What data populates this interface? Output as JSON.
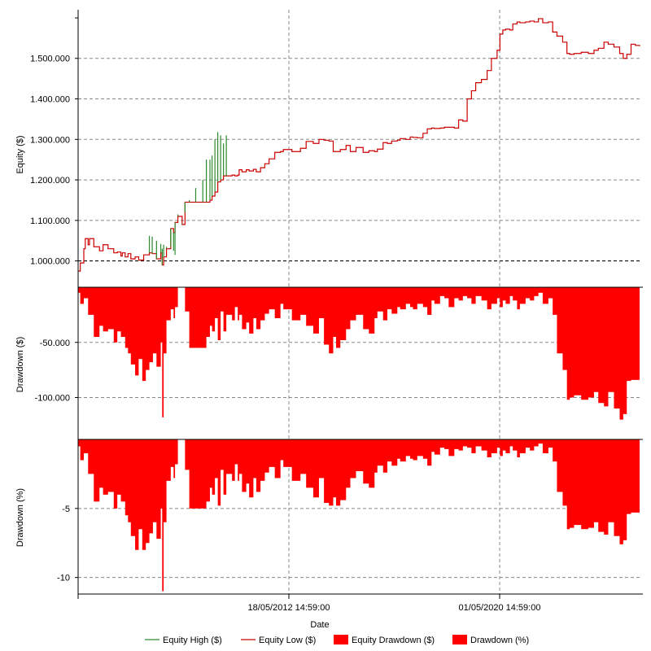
{
  "chart_data": {
    "type": "line",
    "x_axis": {
      "label": "Date",
      "tick_labels": [
        "18/05/2012 14:59:00",
        "01/05/2020 14:59:00"
      ]
    },
    "panels": [
      {
        "id": "equity",
        "ylabel": "Equity ($)",
        "ylim": [
          935000,
          1620000
        ],
        "yticks": [
          1000000,
          1100000,
          1200000,
          1300000,
          1400000,
          1500000
        ],
        "ytick_labels": [
          "1.000.000",
          "1.100.000",
          "1.200.000",
          "1.300.000",
          "1.400.000",
          "1.500.000"
        ],
        "reference_line": 1000000,
        "series": [
          {
            "name": "Equity Low ($)",
            "type": "line",
            "color": "#cc0000",
            "x": [
              0,
              3,
              8,
              10,
              14,
              16,
              22,
              30,
              35,
              42,
              50,
              55,
              60,
              62,
              66,
              70,
              74,
              80,
              85,
              92,
              100,
              104,
              110,
              116,
              118,
              120,
              124,
              130,
              134,
              136,
              140,
              146,
              150,
              156,
              165,
              175,
              180,
              185,
              188,
              192,
              196,
              200,
              204,
              208,
              216,
              220,
              224,
              226,
              230,
              236,
              240,
              246,
              250,
              256,
              262,
              268,
              276,
              284,
              288,
              300,
              312,
              320,
              330,
              338,
              345,
              352,
              358,
              362,
              368,
              376,
              382,
              390,
              400,
              408,
              416,
              420,
              428,
              434,
              440,
              448,
              452,
              460,
              466,
              470,
              476,
              484,
              490,
              496,
              500,
              508,
              514,
              520,
              528,
              534,
              540,
              546,
              552,
              558,
              566,
              574,
              580,
              588,
              592,
              596,
              600,
              606,
              610,
              616,
              620,
              628,
              634,
              640,
              646,
              652,
              660,
              666,
              672,
              680,
              686,
              690,
              696,
              706,
              716,
              724,
              730,
              738,
              744,
              752,
              760,
              765,
              770,
              776,
              782,
              788
            ],
            "y": [
              975000,
              995000,
              1030000,
              1055000,
              1040000,
              1055000,
              1035000,
              1025000,
              1040000,
              1030000,
              1020000,
              1022000,
              1012000,
              1020000,
              1010000,
              1018000,
              1005000,
              1010000,
              1002000,
              1015000,
              1020000,
              1018000,
              1005000,
              1020000,
              990000,
              1010000,
              1030000,
              1080000,
              1070000,
              1095000,
              1110000,
              1090000,
              1145000,
              1145000,
              1145000,
              1145000,
              1145000,
              1150000,
              1160000,
              1170000,
              1195000,
              1200000,
              1210000,
              1210000,
              1212000,
              1210000,
              1212000,
              1225000,
              1220000,
              1225000,
              1222000,
              1226000,
              1220000,
              1230000,
              1240000,
              1252000,
              1268000,
              1270000,
              1275000,
              1270000,
              1278000,
              1295000,
              1290000,
              1300000,
              1298000,
              1296000,
              1270000,
              1270000,
              1275000,
              1285000,
              1270000,
              1280000,
              1268000,
              1272000,
              1270000,
              1276000,
              1292000,
              1290000,
              1296000,
              1298000,
              1302000,
              1300000,
              1306000,
              1305000,
              1304000,
              1315000,
              1326000,
              1328000,
              1327000,
              1328000,
              1330000,
              1330000,
              1328000,
              1348000,
              1345000,
              1400000,
              1420000,
              1440000,
              1448000,
              1470000,
              1500000,
              1520000,
              1560000,
              1570000,
              1572000,
              1570000,
              1585000,
              1590000,
              1588000,
              1590000,
              1592000,
              1590000,
              1598000,
              1588000,
              1590000,
              1565000,
              1555000,
              1540000,
              1512000,
              1510000,
              1512000,
              1515000,
              1512000,
              1520000,
              1525000,
              1540000,
              1535000,
              1528000,
              1512000,
              1500000,
              1510000,
              1535000,
              1532000,
              1530000
            ]
          },
          {
            "name": "Equity High ($)",
            "type": "spikes",
            "color": "#2e8b2e",
            "x": [
              100,
              104,
              110,
              116,
              118,
              120,
              124,
              130,
              134,
              136,
              140,
              146,
              150,
              156,
              165,
              175,
              180,
              185,
              188,
              192,
              196,
              200,
              204,
              208
            ],
            "y": [
              1062000,
              1060000,
              1050000,
              1042000,
              1030000,
              1040000,
              1035000,
              1035000,
              1025000,
              1015000,
              1115000,
              1092000,
              1120000,
              1150000,
              1180000,
              1200000,
              1250000,
              1250000,
              1260000,
              1300000,
              1318000,
              1310000,
              1290000,
              1310000
            ]
          }
        ]
      },
      {
        "id": "drawdown-dollar",
        "ylabel": "Drawdown ($)",
        "ylim": [
          -138000,
          0
        ],
        "yticks": [
          -50000,
          -100000
        ],
        "ytick_labels": [
          "-50.000",
          "-100.000"
        ],
        "series": [
          {
            "name": "Equity Drawdown ($)",
            "type": "area",
            "color": "#ff0000",
            "x": [
              0,
              3,
              8,
              14,
              22,
              30,
              35,
              42,
              50,
              55,
              60,
              66,
              70,
              74,
              80,
              85,
              90,
              95,
              100,
              105,
              110,
              116,
              118,
              120,
              124,
              130,
              134,
              136,
              140,
              146,
              150,
              156,
              180,
              185,
              188,
              192,
              196,
              200,
              204,
              208,
              216,
              220,
              224,
              226,
              230,
              236,
              240,
              246,
              250,
              256,
              262,
              268,
              276,
              284,
              288,
              300,
              312,
              320,
              330,
              338,
              345,
              352,
              358,
              362,
              368,
              376,
              382,
              390,
              400,
              408,
              416,
              420,
              428,
              434,
              440,
              448,
              452,
              460,
              466,
              470,
              476,
              484,
              490,
              496,
              500,
              508,
              514,
              520,
              528,
              534,
              540,
              546,
              552,
              558,
              566,
              574,
              580,
              588,
              592,
              596,
              600,
              606,
              610,
              616,
              620,
              628,
              634,
              640,
              646,
              652,
              660,
              666,
              672,
              680,
              686,
              690,
              696,
              706,
              716,
              724,
              730,
              738,
              744,
              752,
              760,
              765,
              770,
              776,
              782,
              788
            ],
            "y": [
              -5000,
              -15000,
              -10000,
              -25000,
              -45000,
              -35000,
              -40000,
              -38000,
              -50000,
              -40000,
              -45000,
              -55000,
              -60000,
              -70000,
              -80000,
              -65000,
              -85000,
              -75000,
              -68000,
              -60000,
              -72000,
              -50000,
              -118000,
              -60000,
              -30000,
              -20000,
              -28000,
              -18000,
              0,
              0,
              -22000,
              -55000,
              -45000,
              -35000,
              -40000,
              -28000,
              -48000,
              -22000,
              -40000,
              -25000,
              -30000,
              -18000,
              -30000,
              -25000,
              -38000,
              -32000,
              -42000,
              -28000,
              -38000,
              -30000,
              -24000,
              -20000,
              -28000,
              -15000,
              -20000,
              -30000,
              -25000,
              -35000,
              -42000,
              -28000,
              -52000,
              -60000,
              -45000,
              -55000,
              -48000,
              -38000,
              -30000,
              -25000,
              -38000,
              -42000,
              -28000,
              -22000,
              -30000,
              -20000,
              -24000,
              -18000,
              -20000,
              -15000,
              -18000,
              -20000,
              -15000,
              -18000,
              -25000,
              -12000,
              -15000,
              -8000,
              -10000,
              -18000,
              -10000,
              -12000,
              -8000,
              -10000,
              -15000,
              -8000,
              -12000,
              -20000,
              -15000,
              -10000,
              -18000,
              -12000,
              -15000,
              -8000,
              -12000,
              -20000,
              -15000,
              -10000,
              -12000,
              -8000,
              -5000,
              -15000,
              -10000,
              -25000,
              -60000,
              -75000,
              -102000,
              -100000,
              -98000,
              -102000,
              -100000,
              -95000,
              -105000,
              -108000,
              -95000,
              -110000,
              -120000,
              -115000,
              -85000,
              -84000,
              -84000,
              -84000
            ]
          }
        ]
      },
      {
        "id": "drawdown-percent",
        "ylabel": "Drawdown (%)",
        "ylim": [
          -11.2,
          0
        ],
        "yticks": [
          -5,
          -10
        ],
        "ytick_labels": [
          "-5",
          "-10"
        ],
        "series": [
          {
            "name": "Drawdown (%)",
            "type": "area",
            "color": "#ff0000",
            "x": [
              0,
              3,
              8,
              14,
              22,
              30,
              35,
              42,
              50,
              55,
              60,
              66,
              70,
              74,
              80,
              85,
              90,
              95,
              100,
              105,
              110,
              116,
              118,
              120,
              124,
              130,
              134,
              136,
              140,
              146,
              150,
              156,
              180,
              185,
              188,
              192,
              196,
              200,
              204,
              208,
              216,
              220,
              224,
              226,
              230,
              236,
              240,
              246,
              250,
              256,
              262,
              268,
              276,
              284,
              288,
              300,
              312,
              320,
              330,
              338,
              345,
              352,
              358,
              362,
              368,
              376,
              382,
              390,
              400,
              408,
              416,
              420,
              428,
              434,
              440,
              448,
              452,
              460,
              466,
              470,
              476,
              484,
              490,
              496,
              500,
              508,
              514,
              520,
              528,
              534,
              540,
              546,
              552,
              558,
              566,
              574,
              580,
              588,
              592,
              596,
              600,
              606,
              610,
              616,
              620,
              628,
              634,
              640,
              646,
              652,
              660,
              666,
              672,
              680,
              686,
              690,
              696,
              706,
              716,
              724,
              730,
              738,
              744,
              752,
              760,
              765,
              770,
              776,
              782,
              788
            ],
            "y": [
              -0.5,
              -1.5,
              -1.0,
              -2.5,
              -4.5,
              -3.5,
              -4.0,
              -3.8,
              -5.0,
              -4.0,
              -4.5,
              -5.5,
              -6.0,
              -7.0,
              -8.0,
              -6.5,
              -8.0,
              -7.5,
              -6.8,
              -6.0,
              -7.2,
              -5.0,
              -11.0,
              -6.0,
              -3.0,
              -2.0,
              -2.8,
              -1.8,
              0,
              0,
              -2.2,
              -5.0,
              -4.5,
              -3.5,
              -4.0,
              -2.8,
              -4.8,
              -2.2,
              -4.0,
              -2.5,
              -3.0,
              -1.8,
              -3.0,
              -2.5,
              -3.8,
              -3.2,
              -4.2,
              -2.8,
              -3.8,
              -3.0,
              -2.4,
              -2.0,
              -2.8,
              -1.5,
              -2.0,
              -3.0,
              -2.5,
              -3.5,
              -4.2,
              -2.8,
              -4.6,
              -4.8,
              -4.2,
              -4.8,
              -4.4,
              -3.5,
              -2.8,
              -2.3,
              -3.2,
              -3.5,
              -2.4,
              -1.9,
              -2.4,
              -1.6,
              -1.9,
              -1.4,
              -1.6,
              -1.2,
              -1.4,
              -1.5,
              -1.2,
              -1.4,
              -1.9,
              -0.9,
              -1.1,
              -0.6,
              -0.7,
              -1.2,
              -0.7,
              -0.8,
              -0.5,
              -0.6,
              -1.0,
              -0.5,
              -0.8,
              -1.3,
              -1.0,
              -0.6,
              -1.2,
              -0.8,
              -1.0,
              -0.5,
              -0.8,
              -1.3,
              -1.0,
              -0.6,
              -0.8,
              -0.5,
              -0.3,
              -1.0,
              -0.6,
              -1.6,
              -3.8,
              -4.8,
              -6.5,
              -6.4,
              -6.2,
              -6.5,
              -6.4,
              -6.0,
              -6.7,
              -6.9,
              -6.0,
              -7.0,
              -7.6,
              -7.3,
              -5.4,
              -5.3,
              -5.3,
              -5.3
            ]
          }
        ]
      }
    ],
    "grid": true,
    "legend": {
      "position": "bottom",
      "entries": [
        {
          "label": "Equity High ($)",
          "color": "#2e8b2e",
          "kind": "line"
        },
        {
          "label": "Equity Low ($)",
          "color": "#cc0000",
          "kind": "line"
        },
        {
          "label": "Equity Drawdown ($)",
          "color": "#ff0000",
          "kind": "box"
        },
        {
          "label": "Drawdown (%)",
          "color": "#ff0000",
          "kind": "box"
        }
      ]
    }
  }
}
